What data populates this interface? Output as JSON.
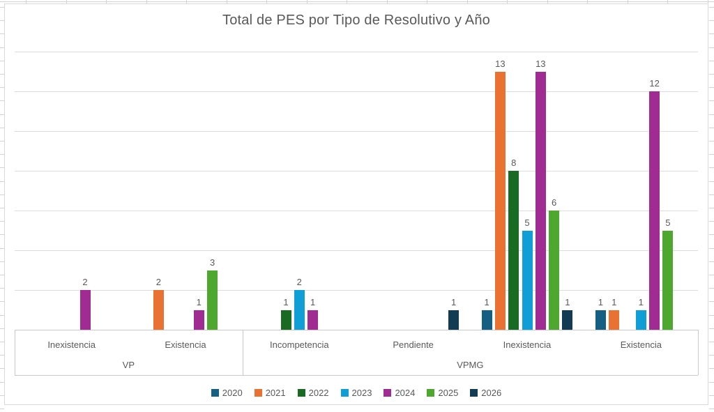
{
  "title": "Total de PES por Tipo de Resolutivo y Año",
  "chart_data": {
    "type": "bar",
    "title": "Total de PES por Tipo de Resolutivo y Año",
    "categories": [
      "Inexistencia",
      "Existencia",
      "Incompetencia",
      "Pendiente",
      "Inexistencia",
      "Existencia"
    ],
    "group_axis": [
      {
        "label": "VP",
        "span": 2
      },
      {
        "label": "VPMG",
        "span": 4
      }
    ],
    "series": [
      {
        "name": "2020",
        "color": "#156082",
        "values": [
          0,
          0,
          0,
          0,
          1,
          1
        ]
      },
      {
        "name": "2021",
        "color": "#E97132",
        "values": [
          0,
          2,
          0,
          0,
          13,
          1
        ]
      },
      {
        "name": "2022",
        "color": "#196B24",
        "values": [
          0,
          0,
          1,
          0,
          8,
          0
        ]
      },
      {
        "name": "2023",
        "color": "#0F9ED5",
        "values": [
          0,
          0,
          2,
          0,
          5,
          1
        ]
      },
      {
        "name": "2024",
        "color": "#A02B93",
        "values": [
          2,
          1,
          1,
          0,
          13,
          12
        ]
      },
      {
        "name": "2025",
        "color": "#4EA72E",
        "values": [
          0,
          3,
          0,
          0,
          6,
          5
        ]
      },
      {
        "name": "2026",
        "color": "#123B54",
        "values": [
          0,
          0,
          0,
          1,
          1,
          0
        ]
      }
    ],
    "ylim": [
      0,
      14
    ],
    "gridline_step": 2,
    "y_axis_labels_visible": false,
    "data_labels_visible": true,
    "legend_position": "bottom",
    "grid": true
  },
  "colors": {
    "title_text": "#595959",
    "axis_text": "#595959",
    "data_label_text": "#595959",
    "gridline": "#DCDCDC",
    "axis_line": "#C9C9C9",
    "chart_border": "#D9D9D9",
    "background": "#FFFFFF"
  }
}
